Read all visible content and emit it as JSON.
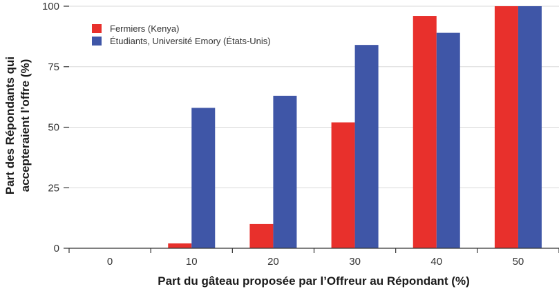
{
  "chart_data": {
    "type": "bar",
    "title": "",
    "xlabel": "Part du gâteau proposée par l’Offreur au Répondant (%)",
    "ylabel_lines": [
      "Part des Répondants qui",
      "accepteraient l’offre (%)"
    ],
    "categories": [
      "0",
      "10",
      "20",
      "30",
      "40",
      "50"
    ],
    "ylim": [
      0,
      100
    ],
    "yticks": [
      0,
      25,
      50,
      75,
      100
    ],
    "grid": true,
    "legend_position": "top-left",
    "series": [
      {
        "name": "Fermiers (Kenya)",
        "color": "#e8302c",
        "values": [
          0,
          2,
          10,
          52,
          96,
          100
        ]
      },
      {
        "name": "Étudiants, Université Emory (États-Unis)",
        "color": "#3f56a7",
        "values": [
          0,
          58,
          63,
          84,
          89,
          100
        ]
      }
    ]
  }
}
